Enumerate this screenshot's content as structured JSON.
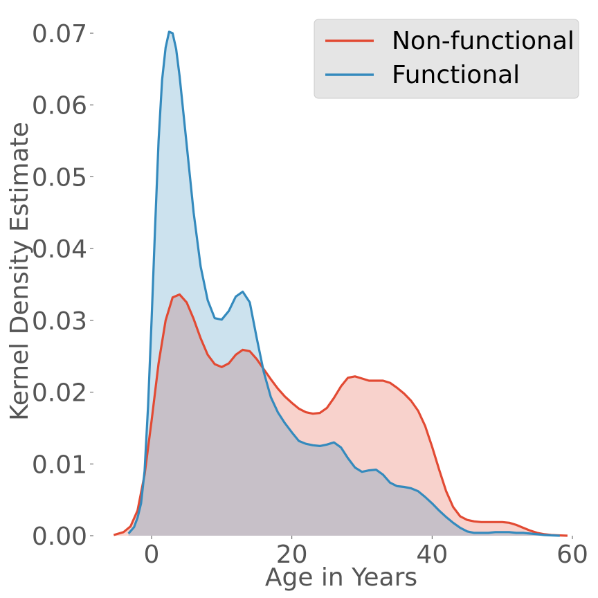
{
  "chart_data": {
    "type": "area",
    "title": "",
    "xlabel": "Age in Years",
    "ylabel": "Kernel Density Estimate",
    "xlim": [
      -6,
      60
    ],
    "ylim": [
      0,
      0.07
    ],
    "xticks": [
      0,
      20,
      40,
      60
    ],
    "xtick_labels": [
      "0",
      "20",
      "40",
      "60"
    ],
    "yticks": [
      0,
      0.01,
      0.02,
      0.03,
      0.04,
      0.05,
      0.06,
      0.07
    ],
    "ytick_labels": [
      "0.00",
      "0.01",
      "0.02",
      "0.03",
      "0.04",
      "0.05",
      "0.06",
      "0.07"
    ],
    "grid": false,
    "legend_position": "top-right",
    "series": [
      {
        "name": "Non-functional",
        "color": "#E24A33",
        "fill": true,
        "x": [
          -5.4,
          -4,
          -3,
          -2,
          -1,
          0,
          1,
          2,
          3,
          4,
          5,
          6,
          7,
          8,
          9,
          10,
          11,
          12,
          13,
          14,
          15,
          16,
          17,
          18,
          19,
          20,
          21,
          22,
          23,
          24,
          25,
          26,
          27,
          28,
          29,
          30,
          31,
          32,
          33,
          34,
          35,
          36,
          37,
          38,
          39,
          40,
          41,
          42,
          43,
          44,
          45,
          46,
          47,
          48,
          49,
          50,
          51,
          52,
          53,
          54,
          55,
          56,
          57,
          58,
          59.3
        ],
        "y": [
          0.0001,
          0.0005,
          0.0013,
          0.0035,
          0.0085,
          0.016,
          0.024,
          0.03,
          0.0332,
          0.0336,
          0.0325,
          0.0302,
          0.0275,
          0.0252,
          0.0239,
          0.0235,
          0.024,
          0.0252,
          0.0259,
          0.0257,
          0.0246,
          0.0232,
          0.0218,
          0.0205,
          0.0194,
          0.0185,
          0.0177,
          0.0172,
          0.017,
          0.0171,
          0.0178,
          0.0192,
          0.0208,
          0.022,
          0.0222,
          0.0219,
          0.0216,
          0.0216,
          0.0216,
          0.0213,
          0.0206,
          0.0198,
          0.0188,
          0.0174,
          0.0153,
          0.0124,
          0.0092,
          0.0062,
          0.004,
          0.0027,
          0.0022,
          0.002,
          0.0019,
          0.0019,
          0.0019,
          0.0019,
          0.0018,
          0.0015,
          0.0011,
          0.0007,
          0.0004,
          0.0002,
          0.0001,
          5e-05,
          0.0
        ]
      },
      {
        "name": "Functional",
        "color": "#348ABD",
        "fill": true,
        "x": [
          -3.3,
          -2.5,
          -2,
          -1.5,
          -1,
          -0.5,
          0,
          0.5,
          1,
          1.5,
          2,
          2.5,
          3,
          3.5,
          4,
          5,
          6,
          7,
          8,
          9,
          10,
          11,
          12,
          13,
          14,
          15,
          16,
          17,
          18,
          19,
          20,
          21,
          22,
          23,
          24,
          25,
          26,
          27,
          28,
          29,
          30,
          31,
          32,
          33,
          34,
          35,
          36,
          37,
          38,
          39,
          40,
          41,
          42,
          43,
          44,
          45,
          46,
          47,
          48,
          49,
          50,
          51,
          52,
          53,
          54,
          55,
          56,
          57,
          58.2
        ],
        "y": [
          0.0003,
          0.0012,
          0.0025,
          0.0045,
          0.009,
          0.018,
          0.03,
          0.043,
          0.055,
          0.0635,
          0.068,
          0.0702,
          0.07,
          0.0678,
          0.064,
          0.0545,
          0.045,
          0.0375,
          0.0328,
          0.0303,
          0.0301,
          0.0313,
          0.0333,
          0.034,
          0.0325,
          0.0275,
          0.0228,
          0.0193,
          0.0172,
          0.0157,
          0.0144,
          0.0132,
          0.0128,
          0.0126,
          0.0125,
          0.0127,
          0.013,
          0.0123,
          0.0108,
          0.0095,
          0.0089,
          0.0091,
          0.0092,
          0.0085,
          0.0074,
          0.0069,
          0.0068,
          0.0066,
          0.0062,
          0.0054,
          0.0045,
          0.0035,
          0.0026,
          0.0018,
          0.0011,
          0.0006,
          0.0004,
          0.0004,
          0.0004,
          0.0005,
          0.0005,
          0.0005,
          0.0004,
          0.0004,
          0.0003,
          0.0002,
          0.0001,
          5e-05,
          0.0
        ]
      }
    ]
  }
}
